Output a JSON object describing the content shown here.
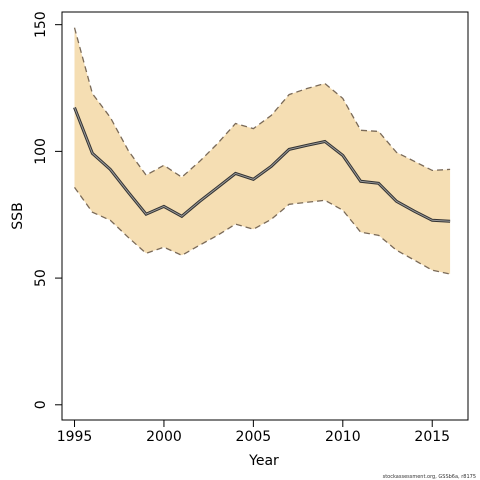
{
  "chart_data": {
    "type": "line",
    "x_label": "Year",
    "y_label": "SSB",
    "footnote": "stockassessment.org, GSSb6a, r8175",
    "x": [
      1995,
      1996,
      1997,
      1998,
      1999,
      2000,
      2001,
      2002,
      2003,
      2004,
      2005,
      2006,
      2007,
      2008,
      2009,
      2010,
      2011,
      2012,
      2013,
      2014,
      2015,
      2016
    ],
    "values": [
      117.3,
      99.2,
      92.9,
      83.9,
      75.2,
      78.3,
      74.4,
      80.3,
      85.8,
      91.3,
      89.0,
      94.1,
      100.8,
      102.4,
      103.9,
      98.4,
      88.2,
      87.4,
      80.3,
      76.4,
      72.8,
      72.4
    ],
    "upper": [
      148.8,
      122.8,
      113.4,
      100.4,
      90.6,
      94.5,
      89.8,
      96.1,
      103.1,
      111.0,
      109.0,
      114.2,
      122.4,
      124.8,
      126.8,
      120.9,
      108.3,
      107.9,
      99.6,
      96.1,
      92.5,
      92.9
    ],
    "lower": [
      85.8,
      76.0,
      72.8,
      66.1,
      59.8,
      62.2,
      59.0,
      63.0,
      66.9,
      71.3,
      69.3,
      73.2,
      79.1,
      79.9,
      80.7,
      76.8,
      68.1,
      66.9,
      61.0,
      57.1,
      53.1,
      51.6
    ],
    "color": "#333333",
    "band_color": "#f5deb3",
    "band_edge_color": "#7a6a58",
    "xlim": [
      1994.3,
      2017
    ],
    "ylim": [
      -6,
      155
    ],
    "xticks": [
      1995,
      2000,
      2005,
      2010,
      2015
    ],
    "yticks": [
      0,
      50,
      100,
      150
    ]
  }
}
